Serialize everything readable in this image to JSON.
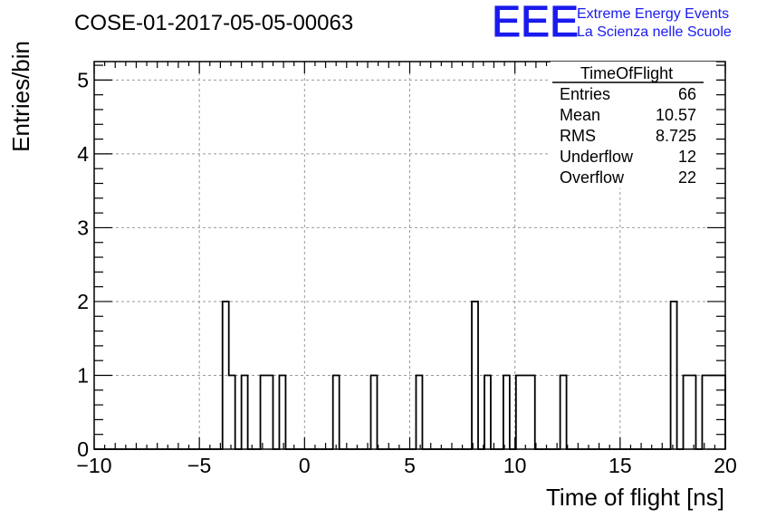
{
  "header": {
    "run_title": "COSE-01-2017-05-05-00063",
    "logo_text": "EEE",
    "logo_line1": "Extreme Energy Events",
    "logo_line2": "La Scienza nelle Scuole",
    "brand_color": "#1a1aee"
  },
  "stats": {
    "name": "TimeOfFlight",
    "rows": [
      {
        "label": "Entries",
        "value": "66"
      },
      {
        "label": "Mean",
        "value": "10.57"
      },
      {
        "label": "RMS",
        "value": "8.725"
      },
      {
        "label": "Underflow",
        "value": "12"
      },
      {
        "label": "Overflow",
        "value": "22"
      }
    ]
  },
  "chart_data": {
    "type": "bar",
    "histogram": true,
    "xlabel": "Time of flight [ns]",
    "ylabel": "Entries/bin",
    "xlim": [
      -10,
      20
    ],
    "ylim": [
      0,
      5.25
    ],
    "grid": true,
    "x_ticks": [
      -10,
      -5,
      0,
      5,
      10,
      15,
      20
    ],
    "x_tick_labels": [
      "−10",
      "−5",
      "0",
      "5",
      "10",
      "15",
      "20"
    ],
    "y_ticks": [
      0,
      1,
      2,
      3,
      4,
      5
    ],
    "y_tick_labels": [
      "0",
      "1",
      "2",
      "3",
      "4",
      "5"
    ],
    "bin_width": 0.3,
    "bins": [
      {
        "x0": -3.9,
        "x1": -3.6,
        "y": 2
      },
      {
        "x0": -3.6,
        "x1": -3.3,
        "y": 1
      },
      {
        "x0": -3.0,
        "x1": -2.7,
        "y": 1
      },
      {
        "x0": -2.1,
        "x1": -1.5,
        "y": 1
      },
      {
        "x0": -1.2,
        "x1": -0.9,
        "y": 1
      },
      {
        "x0": 1.35,
        "x1": 1.65,
        "y": 1
      },
      {
        "x0": 3.15,
        "x1": 3.45,
        "y": 1
      },
      {
        "x0": 5.3,
        "x1": 5.6,
        "y": 1
      },
      {
        "x0": 7.95,
        "x1": 8.25,
        "y": 2
      },
      {
        "x0": 8.55,
        "x1": 8.85,
        "y": 1
      },
      {
        "x0": 9.45,
        "x1": 9.75,
        "y": 1
      },
      {
        "x0": 10.05,
        "x1": 10.95,
        "y": 1
      },
      {
        "x0": 12.15,
        "x1": 12.45,
        "y": 1
      },
      {
        "x0": 17.4,
        "x1": 17.7,
        "y": 2
      },
      {
        "x0": 18.0,
        "x1": 18.6,
        "y": 1
      },
      {
        "x0": 18.9,
        "x1": 20.0,
        "y": 1
      }
    ]
  }
}
